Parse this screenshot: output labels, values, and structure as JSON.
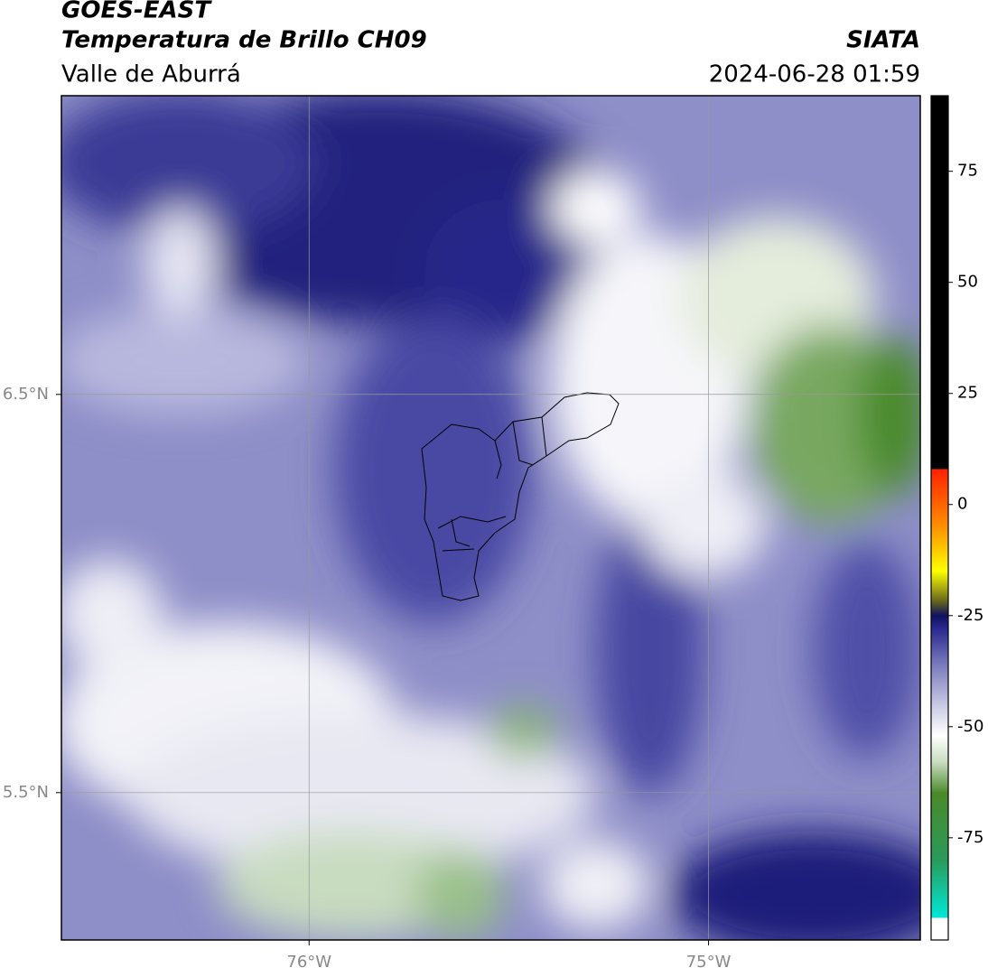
{
  "header": {
    "title": "GOES-EAST",
    "subtitle": "Temperatura de Brillo CH09",
    "region": "Valle de Aburrá",
    "source": "SIATA",
    "datetime": "2024-06-28 01:59"
  },
  "map": {
    "xlim": [
      -76.62,
      -74.47
    ],
    "ylim": [
      5.13,
      7.25
    ],
    "xticks": [
      {
        "value": -76,
        "label": "76°W"
      },
      {
        "value": -75,
        "label": "75°W"
      }
    ],
    "yticks": [
      {
        "value": 6.5,
        "label": "6.5°N"
      },
      {
        "value": 5.5,
        "label": "5.5°N"
      }
    ],
    "grid": true
  },
  "colorbar": {
    "lim": [
      -98,
      92
    ],
    "ticks": [
      75,
      50,
      25,
      0,
      -25,
      -50,
      -75
    ],
    "stops": [
      {
        "value": -98,
        "color": "#ffffff"
      },
      {
        "value": -93,
        "color": "#ffffff"
      },
      {
        "value": -93,
        "color": "#00e8d8"
      },
      {
        "value": -80,
        "color": "#2a9a5a"
      },
      {
        "value": -65,
        "color": "#4a8a2a"
      },
      {
        "value": -58,
        "color": "#c8dcc0"
      },
      {
        "value": -52,
        "color": "#ffffff"
      },
      {
        "value": -45,
        "color": "#c8c8e4"
      },
      {
        "value": -35,
        "color": "#7070b8"
      },
      {
        "value": -28,
        "color": "#2a2a90"
      },
      {
        "value": -25,
        "color": "#101060"
      },
      {
        "value": -22,
        "color": "#606020"
      },
      {
        "value": -15,
        "color": "#ffff00"
      },
      {
        "value": -5,
        "color": "#ff9000"
      },
      {
        "value": 8,
        "color": "#ff2000"
      },
      {
        "value": 8,
        "color": "#000000"
      },
      {
        "value": 92,
        "color": "#000000"
      }
    ]
  }
}
